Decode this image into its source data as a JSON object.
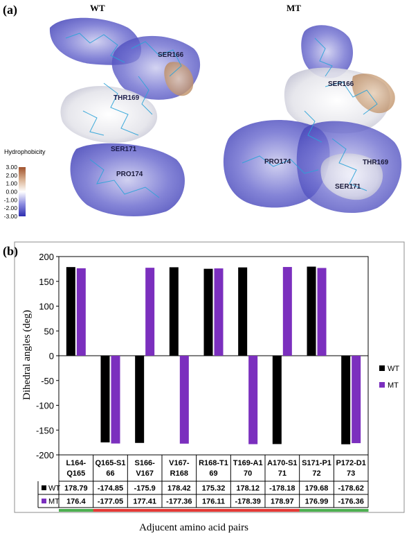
{
  "panel_a": {
    "label": "(a)",
    "wt_title": "WT",
    "mt_title": "MT",
    "wt_residues": [
      "SER166",
      "THR169",
      "SER171",
      "PRO174"
    ],
    "mt_residues": [
      "SER166",
      "PRO174",
      "THR169",
      "SER171"
    ],
    "colorbar": {
      "title": "Hydrophobicity",
      "ticks": [
        "3.00",
        "2.00",
        "1.00",
        "0.00",
        "-1.00",
        "-2.00",
        "-3.00"
      ],
      "colors": {
        "high": "#a0522d",
        "mid": "#ffffff",
        "low": "#3a3ab8"
      }
    }
  },
  "panel_b": {
    "label": "(b)",
    "chart_data": {
      "type": "bar",
      "categories": [
        "L164-Q165",
        "Q165-S166",
        "S166-V167",
        "V167-R168",
        "R168-T169",
        "T169-A170",
        "A170-S171",
        "S171-P172",
        "P172-D173"
      ],
      "category_labels": [
        [
          "L164-",
          "Q165"
        ],
        [
          "Q165-S1",
          "66"
        ],
        [
          "S166-",
          "V167"
        ],
        [
          "V167-",
          "R168"
        ],
        [
          "R168-T1",
          "69"
        ],
        [
          "T169-A1",
          "70"
        ],
        [
          "A170-S1",
          "71"
        ],
        [
          "S171-P1",
          "72"
        ],
        [
          "P172-D1",
          "73"
        ]
      ],
      "series": [
        {
          "name": "WT",
          "color": "#000000",
          "values": [
            178.79,
            -174.85,
            -175.9,
            178.42,
            175.32,
            178.12,
            -178.18,
            179.68,
            -178.62
          ]
        },
        {
          "name": "MT",
          "color": "#7b2fbe",
          "values": [
            176.4,
            -177.05,
            177.41,
            -177.36,
            176.11,
            -178.39,
            178.97,
            176.99,
            -176.36
          ]
        }
      ],
      "table_values": {
        "WT": [
          "178.79",
          "-174.85",
          "-175.9",
          "178.42",
          "175.32",
          "178.12",
          "-178.18",
          "179.68",
          "-178.62"
        ],
        "MT": [
          "176.4",
          "-177.05",
          "177.41",
          "-177.36",
          "176.11",
          "-178.39",
          "178.97",
          "176.99",
          "-176.36"
        ]
      },
      "ylabel": "Dihedral angles (deg)",
      "xlabel": "Adjucent amino acid pairs",
      "ylim": [
        -200,
        200
      ],
      "yticks": [
        200,
        150,
        100,
        50,
        0,
        -50,
        -100,
        -150,
        -200
      ],
      "grid": false,
      "legend": "right",
      "region_colors": [
        "#4caf50",
        "#e53935",
        "#e53935",
        "#e53935",
        "#e53935",
        "#e53935",
        "#e53935",
        "#4caf50",
        "#4caf50"
      ]
    }
  }
}
